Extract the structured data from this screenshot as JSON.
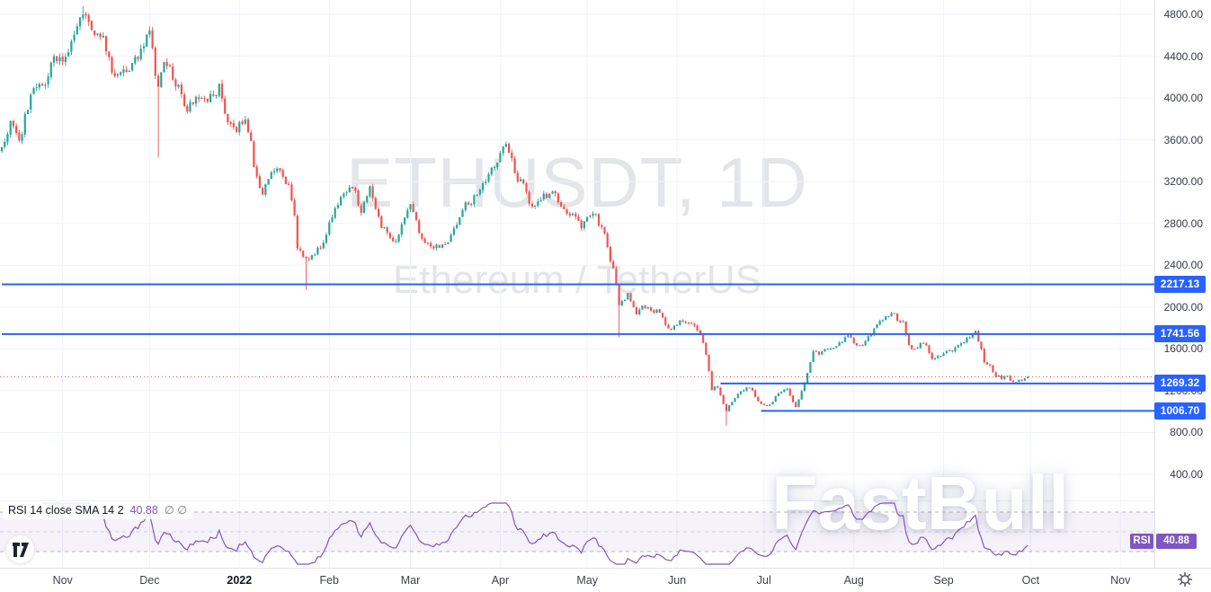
{
  "watermark": {
    "title": "ETHUSDT, 1D",
    "subtitle": "Ethereum / TetherUS"
  },
  "brand": {
    "watermark": "FastBull"
  },
  "colors": {
    "up": "#26a69a",
    "down": "#ef5350",
    "accent": "#2962ff",
    "rsi": "#7e57c2",
    "grid": "#f0f3fa",
    "band_line": "#787b86",
    "axis_text": "#363a45"
  },
  "price_axis": {
    "labels": [
      "4800.00",
      "4400.00",
      "4000.00",
      "3600.00",
      "3200.00",
      "2800.00",
      "2400.00",
      "2000.00",
      "1600.00",
      "1200.00",
      "800.00",
      "400.00"
    ]
  },
  "time_axis": {
    "months": [
      {
        "label": "Nov",
        "day": 21
      },
      {
        "label": "Dec",
        "day": 51
      },
      {
        "label": "2022",
        "day": 82,
        "emphasis": true
      },
      {
        "label": "Feb",
        "day": 113
      },
      {
        "label": "Mar",
        "day": 141
      },
      {
        "label": "Apr",
        "day": 172
      },
      {
        "label": "May",
        "day": 202
      },
      {
        "label": "Jun",
        "day": 233
      },
      {
        "label": "Jul",
        "day": 263
      },
      {
        "label": "Aug",
        "day": 294
      },
      {
        "label": "Sep",
        "day": 325
      },
      {
        "label": "Oct",
        "day": 355
      },
      {
        "label": "Nov",
        "day": 386
      }
    ]
  },
  "levels": [
    {
      "label": "2217.13",
      "price": 2217.13,
      "start_day": 0
    },
    {
      "label": "1741.56",
      "price": 1741.56,
      "start_day": 0
    },
    {
      "label": "1269.32",
      "price": 1269.32,
      "start_day": 248
    },
    {
      "label": "1006.70",
      "price": 1006.7,
      "start_day": 262
    }
  ],
  "rsi": {
    "legend_title": "RSI 14 close SMA 14 2",
    "legend_value": "40.88",
    "legend_extra": "∅ ∅",
    "badge_label": "RSI",
    "badge_value": "40.88",
    "upper_band": 70,
    "middle_band": 50,
    "lower_band": 30
  },
  "chart_data": {
    "type": "candlestick",
    "symbol": "ETHUSDT",
    "interval": "1D",
    "description": "Ethereum / TetherUS",
    "title": "ETHUSDT, 1D",
    "y_ticks": [
      4800,
      4400,
      4000,
      3600,
      3200,
      2800,
      2400,
      2000,
      1600,
      1200,
      800,
      400
    ],
    "ylim": [
      150,
      4940
    ],
    "days": 355,
    "seed": 20221,
    "last_price": 1332.4,
    "levels": [
      2217.13,
      1741.56,
      1269.32,
      1006.7
    ],
    "rsi_last": 40.88,
    "anchors": [
      [
        0,
        3490
      ],
      [
        3,
        3760
      ],
      [
        6,
        3560
      ],
      [
        10,
        4050
      ],
      [
        13,
        4170
      ],
      [
        15,
        4080
      ],
      [
        18,
        4420
      ],
      [
        21,
        4330
      ],
      [
        24,
        4540
      ],
      [
        26,
        4640
      ],
      [
        28,
        4840
      ],
      [
        30,
        4730
      ],
      [
        32,
        4650
      ],
      [
        35,
        4580
      ],
      [
        38,
        4280
      ],
      [
        40,
        4220
      ],
      [
        42,
        4300
      ],
      [
        44,
        4280
      ],
      [
        48,
        4450
      ],
      [
        51,
        4630
      ],
      [
        53,
        4240
      ],
      [
        54,
        4110
      ],
      [
        56,
        4350
      ],
      [
        58,
        4270
      ],
      [
        61,
        4080
      ],
      [
        64,
        3860
      ],
      [
        66,
        3980
      ],
      [
        69,
        3960
      ],
      [
        72,
        4030
      ],
      [
        75,
        4090
      ],
      [
        78,
        3800
      ],
      [
        81,
        3690
      ],
      [
        84,
        3830
      ],
      [
        86,
        3550
      ],
      [
        88,
        3210
      ],
      [
        90,
        3100
      ],
      [
        92,
        3240
      ],
      [
        95,
        3330
      ],
      [
        97,
        3250
      ],
      [
        99,
        3140
      ],
      [
        101,
        2860
      ],
      [
        102,
        2560
      ],
      [
        105,
        2450
      ],
      [
        107,
        2470
      ],
      [
        109,
        2560
      ],
      [
        111,
        2620
      ],
      [
        113,
        2800
      ],
      [
        116,
        2990
      ],
      [
        120,
        3120
      ],
      [
        122,
        3080
      ],
      [
        124,
        2930
      ],
      [
        127,
        3170
      ],
      [
        129,
        2920
      ],
      [
        131,
        2780
      ],
      [
        134,
        2650
      ],
      [
        136,
        2620
      ],
      [
        138,
        2790
      ],
      [
        141,
        2960
      ],
      [
        143,
        2840
      ],
      [
        145,
        2640
      ],
      [
        148,
        2580
      ],
      [
        151,
        2560
      ],
      [
        154,
        2600
      ],
      [
        157,
        2800
      ],
      [
        159,
        2950
      ],
      [
        161,
        2980
      ],
      [
        163,
        3050
      ],
      [
        166,
        3160
      ],
      [
        169,
        3310
      ],
      [
        172,
        3460
      ],
      [
        174,
        3530
      ],
      [
        176,
        3410
      ],
      [
        178,
        3230
      ],
      [
        180,
        3180
      ],
      [
        182,
        3010
      ],
      [
        184,
        2960
      ],
      [
        186,
        3060
      ],
      [
        188,
        3070
      ],
      [
        190,
        3110
      ],
      [
        192,
        3020
      ],
      [
        194,
        2950
      ],
      [
        196,
        2900
      ],
      [
        198,
        2860
      ],
      [
        200,
        2750
      ],
      [
        202,
        2840
      ],
      [
        204,
        2920
      ],
      [
        206,
        2800
      ],
      [
        208,
        2710
      ],
      [
        210,
        2450
      ],
      [
        211,
        2350
      ],
      [
        213,
        2030
      ],
      [
        215,
        2090
      ],
      [
        216,
        2150
      ],
      [
        218,
        1990
      ],
      [
        219,
        1930
      ],
      [
        221,
        2000
      ],
      [
        223,
        1985
      ],
      [
        225,
        1950
      ],
      [
        227,
        1960
      ],
      [
        229,
        1830
      ],
      [
        231,
        1800
      ],
      [
        233,
        1830
      ],
      [
        235,
        1880
      ],
      [
        237,
        1860
      ],
      [
        239,
        1820
      ],
      [
        240,
        1790
      ],
      [
        242,
        1640
      ],
      [
        243,
        1530
      ],
      [
        245,
        1220
      ],
      [
        247,
        1240
      ],
      [
        249,
        1080
      ],
      [
        250,
        1000
      ],
      [
        251,
        1070
      ],
      [
        253,
        1130
      ],
      [
        255,
        1200
      ],
      [
        257,
        1230
      ],
      [
        259,
        1200
      ],
      [
        261,
        1100
      ],
      [
        263,
        1070
      ],
      [
        265,
        1060
      ],
      [
        267,
        1140
      ],
      [
        269,
        1200
      ],
      [
        271,
        1220
      ],
      [
        273,
        1090
      ],
      [
        274,
        1050
      ],
      [
        276,
        1190
      ],
      [
        278,
        1360
      ],
      [
        280,
        1570
      ],
      [
        282,
        1540
      ],
      [
        284,
        1590
      ],
      [
        286,
        1600
      ],
      [
        288,
        1620
      ],
      [
        290,
        1680
      ],
      [
        292,
        1720
      ],
      [
        293,
        1690
      ],
      [
        295,
        1640
      ],
      [
        297,
        1650
      ],
      [
        299,
        1720
      ],
      [
        301,
        1780
      ],
      [
        303,
        1870
      ],
      [
        305,
        1910
      ],
      [
        307,
        1950
      ],
      [
        309,
        1880
      ],
      [
        311,
        1850
      ],
      [
        313,
        1630
      ],
      [
        315,
        1580
      ],
      [
        317,
        1670
      ],
      [
        319,
        1620
      ],
      [
        321,
        1510
      ],
      [
        323,
        1520
      ],
      [
        325,
        1560
      ],
      [
        327,
        1570
      ],
      [
        329,
        1600
      ],
      [
        331,
        1650
      ],
      [
        333,
        1700
      ],
      [
        335,
        1750
      ],
      [
        336,
        1775
      ],
      [
        338,
        1600
      ],
      [
        339,
        1480
      ],
      [
        341,
        1430
      ],
      [
        343,
        1340
      ],
      [
        345,
        1320
      ],
      [
        347,
        1340
      ],
      [
        349,
        1280
      ],
      [
        351,
        1300
      ],
      [
        353,
        1320
      ],
      [
        354,
        1332
      ]
    ],
    "wick_overrides": [
      [
        28,
        "high",
        4880
      ],
      [
        54,
        "low",
        3430
      ],
      [
        105,
        "low",
        2165
      ],
      [
        174,
        "high",
        3580
      ],
      [
        213,
        "low",
        1710
      ],
      [
        250,
        "low",
        865
      ]
    ]
  }
}
